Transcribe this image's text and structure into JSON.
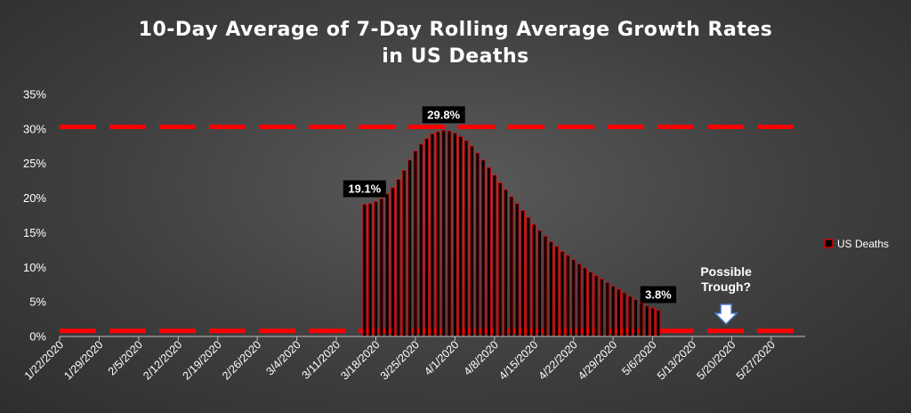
{
  "chart_data": {
    "type": "bar",
    "title": [
      "10-Day Average of 7-Day Rolling Average Growth Rates",
      "in US Deaths"
    ],
    "xlabel": "",
    "ylabel": "",
    "ylim": [
      0,
      35
    ],
    "yticks": [
      "0%",
      "5%",
      "10%",
      "15%",
      "20%",
      "25%",
      "30%",
      "35%"
    ],
    "x_date_range": [
      "2020-01-22",
      "2020-06-02"
    ],
    "xticks": [
      "1/22/2020",
      "1/29/2020",
      "2/5/2020",
      "2/12/2020",
      "2/19/2020",
      "2/26/2020",
      "3/4/2020",
      "3/11/2020",
      "3/18/2020",
      "3/25/2020",
      "4/1/2020",
      "4/8/2020",
      "4/15/2020",
      "4/22/2020",
      "4/29/2020",
      "5/6/2020",
      "5/13/2020",
      "5/20/2020",
      "5/27/2020"
    ],
    "grid": false,
    "legend_position": "right",
    "series": [
      {
        "name": "US Deaths",
        "color": "#000000",
        "edge_color": "#e00000",
        "start_date": "2020-03-16",
        "values": [
          19.1,
          19.2,
          19.5,
          19.9,
          20.6,
          21.5,
          22.7,
          24.0,
          25.5,
          26.8,
          27.8,
          28.6,
          29.3,
          29.6,
          29.8,
          29.7,
          29.4,
          28.9,
          28.3,
          27.5,
          26.5,
          25.5,
          24.4,
          23.3,
          22.2,
          21.2,
          20.2,
          19.2,
          18.2,
          17.2,
          16.2,
          15.3,
          14.5,
          13.7,
          13.0,
          12.3,
          11.7,
          11.1,
          10.5,
          9.9,
          9.3,
          8.8,
          8.3,
          7.8,
          7.3,
          6.8,
          6.3,
          5.8,
          5.3,
          4.8,
          4.4,
          4.1,
          3.8
        ]
      }
    ],
    "reference_lines": [
      {
        "y": 30.3,
        "style": "dashed",
        "color": "#ff0000"
      },
      {
        "y": 0.8,
        "style": "dashed",
        "color": "#ff0000"
      }
    ],
    "callouts": [
      {
        "date": "2020-03-16",
        "label": "19.1%"
      },
      {
        "date": "2020-03-30",
        "label": "29.8%"
      },
      {
        "date": "2020-05-07",
        "label": "3.8%"
      }
    ],
    "annotation": {
      "lines": [
        "Possible",
        "Trough?"
      ],
      "date": "2020-05-19",
      "arrow": "down"
    }
  }
}
